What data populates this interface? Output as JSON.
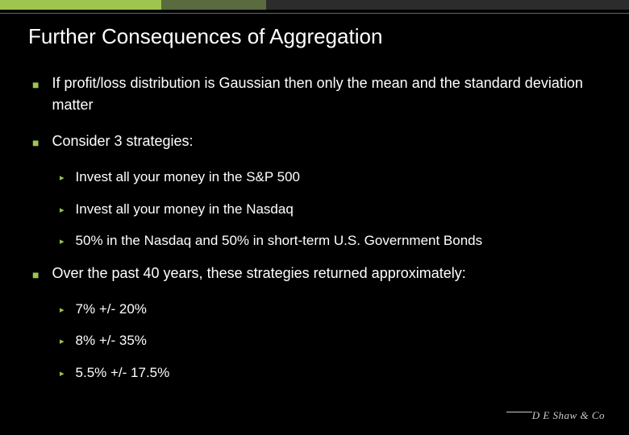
{
  "colors": {
    "background": "#000000",
    "accent": "#9ec54f",
    "accent_dark": "#5a6b3f",
    "bar_gray": "#2c2c2c",
    "rule": "#666666",
    "text": "#ffffff",
    "logo": "#cccccc"
  },
  "title": "Further Consequences of Aggregation",
  "bullets": [
    {
      "level": 1,
      "text": "If profit/loss distribution is Gaussian then only the mean and the standard deviation matter"
    },
    {
      "level": 1,
      "text": "Consider 3 strategies:"
    },
    {
      "level": 2,
      "text": "Invest all your money in the S&P 500"
    },
    {
      "level": 2,
      "text": "Invest all your money in the Nasdaq"
    },
    {
      "level": 2,
      "text": "50% in the Nasdaq and 50% in short-term U.S. Government Bonds"
    },
    {
      "level": 1,
      "text": "Over the past 40 years, these strategies returned approximately:"
    },
    {
      "level": 2,
      "text": "7% +/- 20%"
    },
    {
      "level": 2,
      "text": "8% +/- 35%"
    },
    {
      "level": 2,
      "text": "5.5% +/- 17.5%"
    }
  ],
  "logo_text": "D E Shaw & Co"
}
